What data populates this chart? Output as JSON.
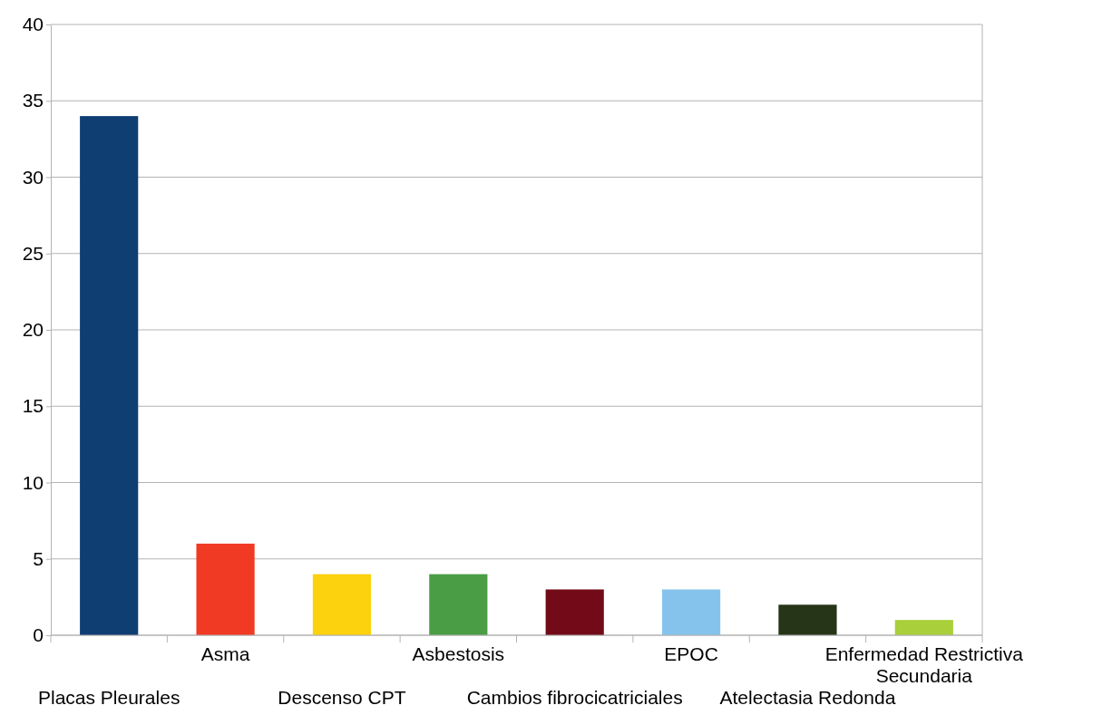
{
  "chart_data": {
    "type": "bar",
    "categories": [
      "Placas Pleurales",
      "Asma",
      "Descenso CPT",
      "Asbestosis",
      "Cambios fibrocicatriciales",
      "EPOC",
      "Atelectasia Redonda",
      "Enfermedad Restrictiva Secundaria"
    ],
    "values": [
      34,
      6,
      4,
      4,
      3,
      3,
      2,
      1
    ],
    "colors": [
      "#0f3e73",
      "#f03a23",
      "#fcd10d",
      "#4a9d45",
      "#720a17",
      "#86c3ec",
      "#263417",
      "#a9cf3a"
    ],
    "ylim": [
      0,
      40
    ],
    "yticks": [
      0,
      5,
      10,
      15,
      20,
      25,
      30,
      35,
      40
    ],
    "grid": "y"
  }
}
